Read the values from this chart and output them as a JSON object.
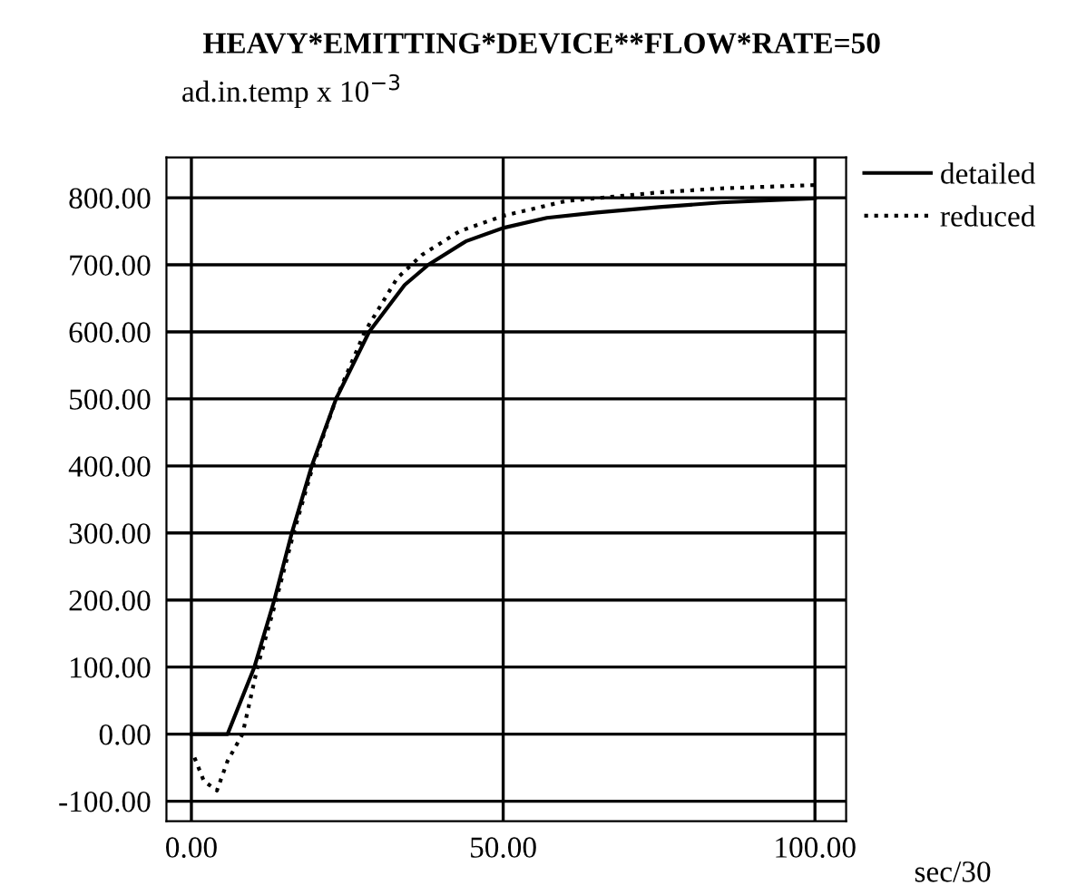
{
  "chart_data": {
    "type": "line",
    "title": "HEAVY*EMITTING*DEVICE**FLOW*RATE=50",
    "ylabel": "ad.in.temp x 10$^{−3}$",
    "xlabel": "sec/30",
    "series": [
      {
        "name": "detailed",
        "color": "#000000",
        "line_style": "solid",
        "x": [
          0,
          5.8,
          10.1,
          13.3,
          16.1,
          19.3,
          23.2,
          28.5,
          34.2,
          38,
          44,
          50,
          57,
          65,
          75,
          85,
          100
        ],
        "values": [
          0,
          0,
          100,
          200,
          300,
          400,
          500,
          600,
          670,
          700,
          735,
          755,
          770,
          778,
          786,
          793,
          799
        ]
      },
      {
        "name": "reduced",
        "color": "#000000",
        "line_style": "dotted",
        "x": [
          0.5,
          2,
          4.1,
          5.8,
          8.2,
          10.6,
          13.6,
          16.4,
          19.5,
          23.2,
          27.8,
          33,
          37,
          43,
          50,
          60,
          75,
          85,
          100
        ],
        "values": [
          -35,
          -70,
          -84,
          -40,
          0,
          100,
          200,
          300,
          400,
          500,
          600,
          680,
          715,
          750,
          773,
          795,
          808,
          814,
          819
        ]
      }
    ],
    "xlim": [
      -4,
      105
    ],
    "xticks": [
      {
        "value": 0,
        "label": "0.00"
      },
      {
        "value": 50,
        "label": "50.00"
      },
      {
        "value": 100,
        "label": "100.00"
      }
    ],
    "ylim": [
      -130,
      860
    ],
    "yticks": [
      {
        "value": -100,
        "label": "-100.00"
      },
      {
        "value": 0,
        "label": "0.00"
      },
      {
        "value": 100,
        "label": "100.00"
      },
      {
        "value": 200,
        "label": "200.00"
      },
      {
        "value": 300,
        "label": "300.00"
      },
      {
        "value": 400,
        "label": "400.00"
      },
      {
        "value": 500,
        "label": "500.00"
      },
      {
        "value": 600,
        "label": "600.00"
      },
      {
        "value": 700,
        "label": "700.00"
      },
      {
        "value": 800,
        "label": "800.00"
      }
    ],
    "grid": true,
    "legend": "right"
  }
}
